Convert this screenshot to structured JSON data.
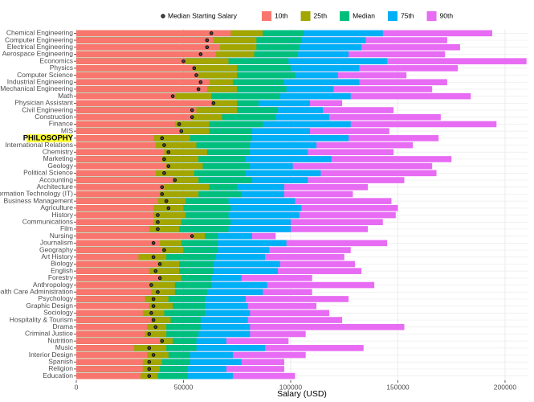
{
  "chart_data": {
    "type": "range_bar",
    "x_label": "Salary (USD)",
    "categories": [
      "Chemical Engineering",
      "Computer Engineering",
      "Electrical Engineering",
      "Aerospace Engineering",
      "Economics",
      "Physics",
      "Computer Science",
      "Industrial Engineering",
      "Mechanical Engineering",
      "Math",
      "Physician Assistant",
      "Civil Engineering",
      "Construction",
      "Finance",
      "MIS",
      "PHILOSOPHY",
      "International Relations",
      "Chemistry",
      "Marketing",
      "Geology",
      "Political Science",
      "Accounting",
      "Architecture",
      "Information Technology (IT)",
      "Business Management",
      "Agriculture",
      "History",
      "Communications",
      "Film",
      "Nursing",
      "Journalism",
      "Geography",
      "Art History",
      "Biology",
      "English",
      "Forestry",
      "Anthropology",
      "Health Care Administration",
      "Psychology",
      "Graphic Design",
      "Sociology",
      "Hospitality & Tourism",
      "Drama",
      "Criminal Justice",
      "Nutrition",
      "Music",
      "Interior Design",
      "Spanish",
      "Religion",
      "Education"
    ],
    "highlighted_category": 15,
    "series": [
      {
        "name": "10th",
        "color": "#f8766d",
        "values": [
          72000,
          64000,
          67000,
          65000,
          51000,
          55000,
          57000,
          62000,
          61000,
          46000,
          63000,
          56000,
          54000,
          46000,
          48000,
          36000,
          37000,
          41000,
          40000,
          42000,
          37000,
          45000,
          41000,
          39000,
          38000,
          36000,
          36000,
          36000,
          34000,
          55000,
          39000,
          40000,
          29000,
          38000,
          34000,
          39000,
          34000,
          35000,
          32000,
          34000,
          31000,
          35000,
          33000,
          32000,
          39000,
          27000,
          33000,
          31000,
          31000,
          30000
        ]
      },
      {
        "name": "25th",
        "color": "#a3a500",
        "values": [
          87000,
          84000,
          84000,
          83000,
          71000,
          75000,
          75000,
          73000,
          75000,
          63000,
          75000,
          75000,
          68000,
          62000,
          62000,
          53000,
          56000,
          61000,
          57000,
          59000,
          55000,
          57000,
          62000,
          57000,
          51000,
          50000,
          51000,
          49000,
          48000,
          60000,
          49000,
          50000,
          42000,
          48000,
          48000,
          49000,
          46000,
          46000,
          43000,
          45000,
          41000,
          44000,
          42000,
          42000,
          45000,
          42000,
          43000,
          40000,
          39000,
          38000
        ]
      },
      {
        "name": "Median",
        "color": "#00bf7d",
        "values": [
          106000,
          105000,
          104000,
          103000,
          99000,
          100000,
          102000,
          97000,
          98000,
          95000,
          85000,
          94000,
          93000,
          87000,
          82000,
          82000,
          81000,
          81000,
          79000,
          81000,
          79000,
          82000,
          75000,
          77000,
          71000,
          72000,
          71000,
          72000,
          71000,
          66000,
          66000,
          66000,
          65000,
          64000,
          64000,
          63000,
          63000,
          61000,
          60000,
          60000,
          60000,
          58000,
          58000,
          57000,
          56000,
          56000,
          53000,
          53000,
          52000,
          52000
        ]
      },
      {
        "name": "75th",
        "color": "#00b0f6",
        "values": [
          143000,
          135000,
          133000,
          127000,
          145000,
          132000,
          122000,
          132000,
          120000,
          128000,
          109000,
          115000,
          118000,
          128000,
          109000,
          127000,
          112000,
          108000,
          119000,
          101000,
          114000,
          108000,
          97000,
          97000,
          102000,
          105000,
          104000,
          100000,
          100000,
          82000,
          98000,
          90000,
          88000,
          95000,
          94000,
          77000,
          89000,
          87000,
          79000,
          80000,
          81000,
          80000,
          81000,
          81000,
          70000,
          88000,
          73000,
          77000,
          70000,
          73000
        ]
      },
      {
        "name": "90th",
        "color": "#e76bf3",
        "values": [
          194000,
          173000,
          179000,
          172000,
          210000,
          178000,
          154000,
          173000,
          166000,
          184000,
          124000,
          148000,
          170000,
          196000,
          146000,
          169000,
          157000,
          148000,
          175000,
          166000,
          168000,
          153000,
          136000,
          129000,
          147000,
          150000,
          149000,
          143000,
          136000,
          93000,
          145000,
          128000,
          125000,
          130000,
          133000,
          110000,
          139000,
          110000,
          127000,
          112000,
          118000,
          124000,
          153000,
          107000,
          99000,
          134000,
          107000,
          97000,
          97000,
          102000
        ]
      }
    ],
    "markers": {
      "name": "Median Starting Salary",
      "color": "#444444",
      "values": [
        63000,
        61000,
        61000,
        58000,
        50000,
        55000,
        56000,
        58000,
        57000,
        45000,
        64000,
        54000,
        54000,
        48000,
        49000,
        40000,
        41000,
        43000,
        41000,
        43000,
        41000,
        46000,
        40000,
        40000,
        42000,
        43000,
        38000,
        38000,
        38000,
        54000,
        36000,
        41000,
        36000,
        39000,
        37000,
        39000,
        35000,
        38000,
        36000,
        36000,
        35000,
        36000,
        37000,
        34000,
        40000,
        34000,
        36000,
        34000,
        34000,
        34000
      ]
    },
    "xlim": [
      0,
      210500
    ],
    "xticks": [
      0,
      50000,
      100000,
      150000,
      200000
    ],
    "grid": true
  }
}
